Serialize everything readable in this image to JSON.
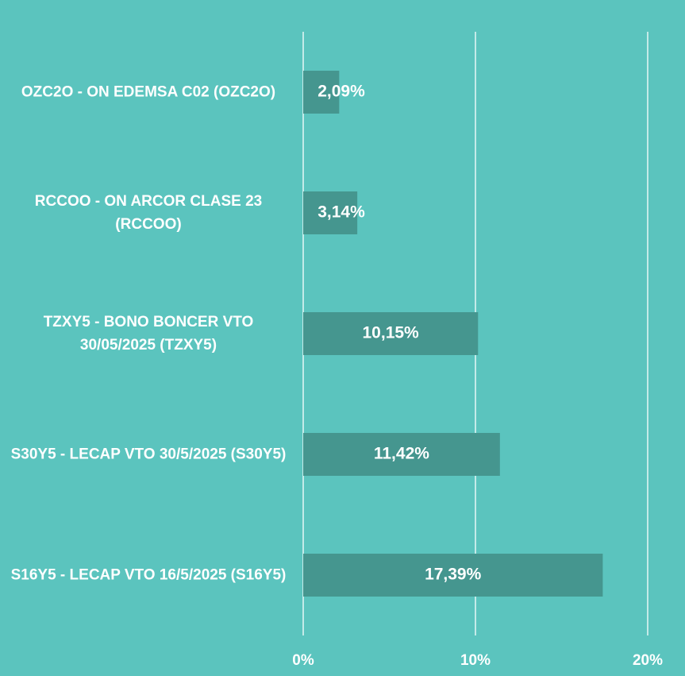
{
  "chart_data": {
    "type": "bar",
    "orientation": "horizontal",
    "categories": [
      "OZC2O - ON EDEMSA C02 (OZC2O)",
      "RCCOO - ON ARCOR CLASE 23 (RCCOO)",
      "TZXY5 - BONO BONCER VTO 30/05/2025 (TZXY5)",
      "S30Y5 - LECAP VTO 30/5/2025 (S30Y5)",
      "S16Y5 - LECAP VTO 16/5/2025 (S16Y5)"
    ],
    "values": [
      2.09,
      3.14,
      10.15,
      11.42,
      17.39
    ],
    "value_labels": [
      "2,09%",
      "3,14%",
      "10,15%",
      "11,42%",
      "17,39%"
    ],
    "color": "#45968f",
    "xlim": [
      0,
      20
    ],
    "xticks": [
      {
        "value": 0,
        "label": "0%"
      },
      {
        "value": 10,
        "label": "10%"
      },
      {
        "value": 20,
        "label": "20%"
      }
    ],
    "grid": true
  }
}
